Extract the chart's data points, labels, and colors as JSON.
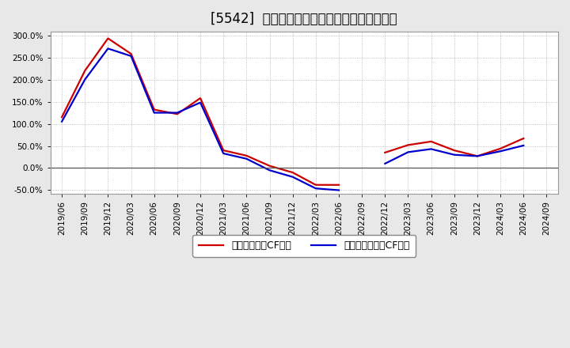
{
  "title": "[5542]  流動負債キャッシュフロー比率の推移",
  "legend_red": "流動負債営業CF比率",
  "legend_blue": "流動負債フリーCF比率",
  "background_color": "#e8e8e8",
  "plot_background": "#ffffff",
  "dates": [
    "2019/06",
    "2019/09",
    "2019/12",
    "2020/03",
    "2020/06",
    "2020/09",
    "2020/12",
    "2021/03",
    "2021/06",
    "2021/09",
    "2021/12",
    "2022/03",
    "2022/06",
    "2022/09",
    "2022/12",
    "2023/03",
    "2023/06",
    "2023/09",
    "2023/12",
    "2024/03",
    "2024/06",
    "2024/09"
  ],
  "red_values": [
    1.15,
    2.2,
    2.93,
    2.58,
    1.32,
    1.22,
    1.58,
    0.4,
    0.28,
    0.05,
    -0.1,
    -0.38,
    -0.38,
    null,
    0.35,
    0.52,
    0.6,
    0.4,
    0.27,
    0.44,
    0.67,
    null
  ],
  "blue_values": [
    1.05,
    2.0,
    2.7,
    2.53,
    1.25,
    1.25,
    1.48,
    0.33,
    0.21,
    -0.05,
    -0.2,
    -0.46,
    -0.5,
    null,
    0.1,
    0.36,
    0.43,
    0.3,
    0.27,
    0.38,
    0.51,
    null
  ],
  "red_color": "#cc0000",
  "blue_color": "#0000cc",
  "line_width": 1.6,
  "grid_color": "#aaaaaa",
  "title_fontsize": 12,
  "tick_fontsize": 7.5,
  "legend_fontsize": 9
}
